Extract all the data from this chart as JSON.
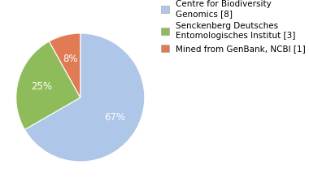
{
  "labels": [
    "Centre for Biodiversity\nGenomics [8]",
    "Senckenberg Deutsches\nEntomologisches Institut [3]",
    "Mined from GenBank, NCBI [1]"
  ],
  "values": [
    66,
    25,
    8
  ],
  "colors": [
    "#aec6e8",
    "#8fbc5a",
    "#e07b54"
  ],
  "background_color": "#ffffff",
  "label_fontsize": 7.5,
  "pct_fontsize": 8.5,
  "startangle": 90
}
